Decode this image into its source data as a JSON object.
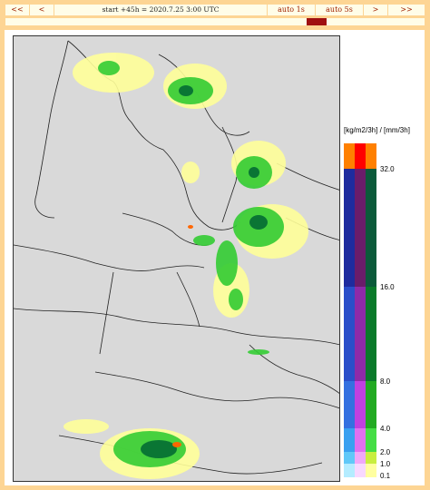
{
  "toolbar": {
    "first_label": "<<",
    "prev_label": "<",
    "title": "start +45h  =  2020.7.25 3:00 UTC",
    "auto_slow_label": "auto 1s",
    "auto_fast_label": "auto 5s",
    "next_label": ">",
    "last_label": ">>"
  },
  "legend": {
    "unit_label": "[kg/m2/3h] / [mm/3h]",
    "ticks": [
      "32.0",
      "16.0",
      "8.0",
      "4.0",
      "2.0",
      "1.0",
      "0.1"
    ]
  },
  "colors": {
    "page_background": "#fdd594",
    "map_background": "#d9d9d9",
    "timeline_marker": "#a01010",
    "precip_light": "#ffff99",
    "precip_mid": "#33cc33",
    "precip_heavy": "#006633",
    "precip_extreme": "#ff6600"
  }
}
